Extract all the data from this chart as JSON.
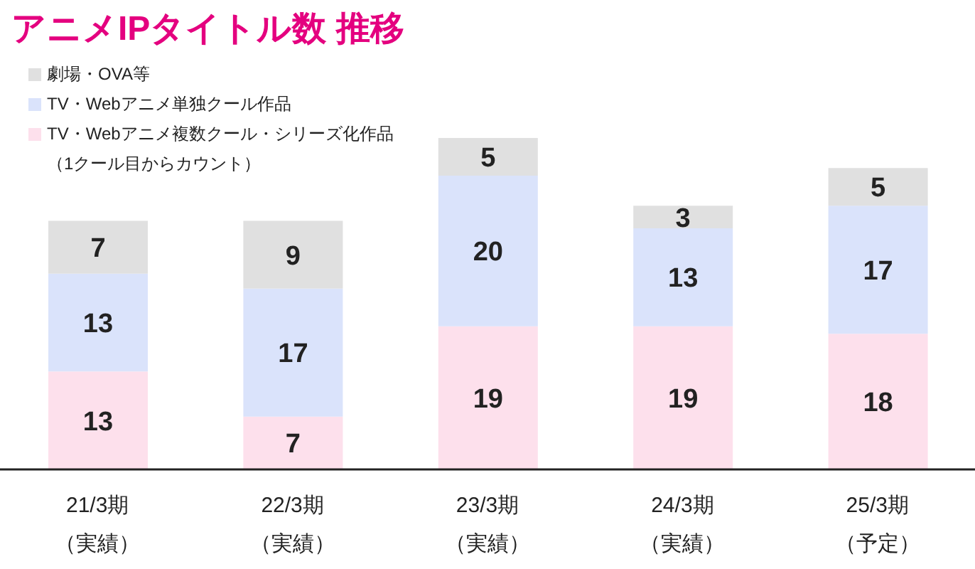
{
  "chart_data": {
    "type": "bar",
    "title": "アニメIPタイトル数 推移",
    "stacked": true,
    "data_labels": true,
    "legend": "top left",
    "categories": [
      "21/3期（実績）",
      "22/3期（実績）",
      "23/3期（実績）",
      "24/3期（実績）",
      "25/3期（予定）"
    ],
    "series": [
      {
        "name": "TV・Webアニメ複数クール・シリーズ化作品（1クール目からカウント）",
        "color": "#fde0ec",
        "values": [
          13,
          7,
          19,
          19,
          18
        ]
      },
      {
        "name": "TV・Webアニメ単独クール作品",
        "color": "#dae3fb",
        "values": [
          13,
          17,
          20,
          13,
          17
        ]
      },
      {
        "name": "劇場・OVA等",
        "color": "#e0e0e0",
        "values": [
          7,
          9,
          5,
          3,
          5
        ]
      }
    ]
  }
}
